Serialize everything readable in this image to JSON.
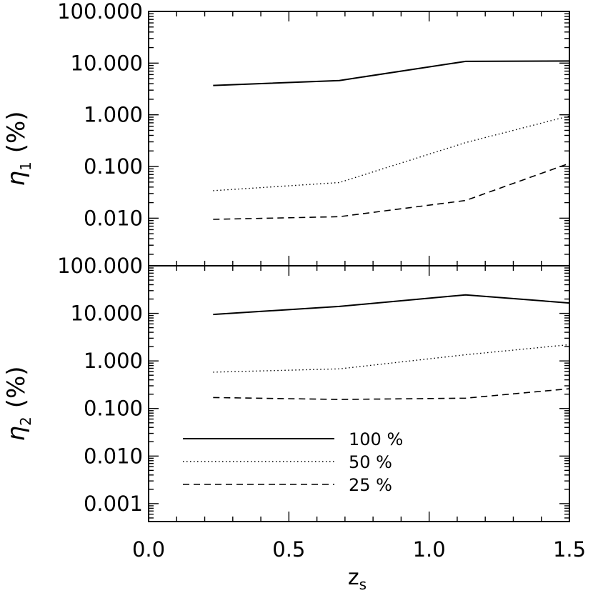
{
  "chart_data": [
    {
      "type": "line",
      "panel": "top",
      "ylabel": "η₁ (%)",
      "ylabel_symbol": "η",
      "ylabel_subscript": "1",
      "ylabel_unit": "(%)",
      "yscale": "log",
      "ylim": [
        0.0012,
        100
      ],
      "yticks": [
        100,
        10,
        1,
        0.1,
        0.01
      ],
      "ytick_labels": [
        "100.000",
        "10.000",
        "1.000",
        "0.100",
        "0.010"
      ],
      "xlim": [
        0.0,
        1.5
      ],
      "series": [
        {
          "style": "solid",
          "x": [
            0.23,
            0.68,
            1.13,
            1.5
          ],
          "y": [
            3.7,
            4.6,
            10.8,
            11.0
          ]
        },
        {
          "style": "dotted",
          "x": [
            0.23,
            0.68,
            1.13,
            1.5
          ],
          "y": [
            0.034,
            0.049,
            0.29,
            0.95
          ]
        },
        {
          "style": "dashed",
          "x": [
            0.23,
            0.68,
            1.13,
            1.5
          ],
          "y": [
            0.0095,
            0.0107,
            0.022,
            0.115
          ]
        }
      ]
    },
    {
      "type": "line",
      "panel": "bottom",
      "ylabel": "η₂ (%)",
      "ylabel_symbol": "η",
      "ylabel_subscript": "2",
      "ylabel_unit": "(%)",
      "xlabel": "z_s",
      "xlabel_main": "z",
      "xlabel_subscript": "s",
      "yscale": "log",
      "ylim": [
        0.00042,
        100
      ],
      "yticks": [
        100,
        10,
        1,
        0.1,
        0.01,
        0.001
      ],
      "ytick_labels": [
        "100.000",
        "10.000",
        "1.000",
        "0.100",
        "0.010",
        "0.001"
      ],
      "xlim": [
        0.0,
        1.5
      ],
      "xticks": [
        0.0,
        0.5,
        1.0,
        1.5
      ],
      "xtick_labels": [
        "0.0",
        "0.5",
        "1.0",
        "1.5"
      ],
      "legend": [
        "100 %",
        "50 %",
        "25 %"
      ],
      "legend_position": "lower-left",
      "series": [
        {
          "name": "100 %",
          "style": "solid",
          "x": [
            0.23,
            0.68,
            1.13,
            1.5
          ],
          "y": [
            9.5,
            14.0,
            24.5,
            16.5
          ]
        },
        {
          "name": "50 %",
          "style": "dotted",
          "x": [
            0.23,
            0.68,
            1.13,
            1.5
          ],
          "y": [
            0.58,
            0.68,
            1.35,
            2.2
          ]
        },
        {
          "name": "25 %",
          "style": "dashed",
          "x": [
            0.23,
            0.68,
            1.13,
            1.5
          ],
          "y": [
            0.17,
            0.155,
            0.165,
            0.26
          ]
        }
      ]
    }
  ]
}
